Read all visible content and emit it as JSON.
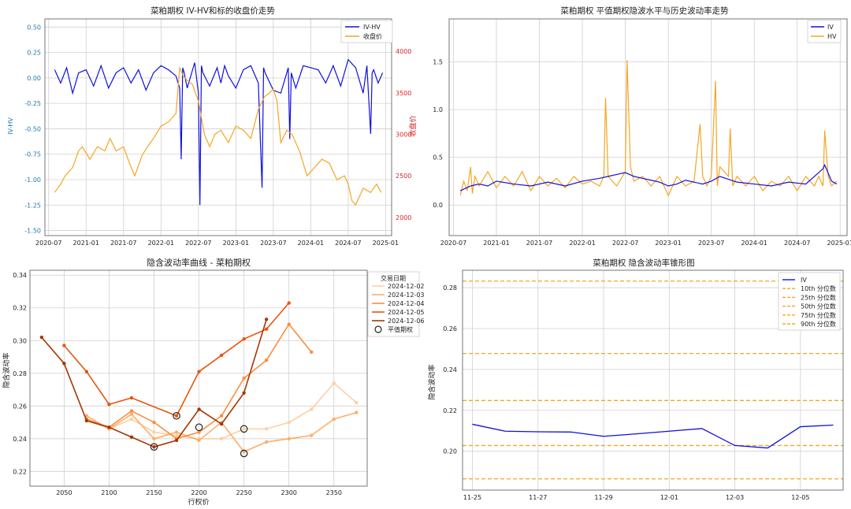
{
  "chart_data": [
    {
      "id": "ivhv",
      "type": "line",
      "title": "菜粕期权 IV-HV和标的收盘价走势",
      "ylabel": "IV-HV",
      "y2label": "收盘价",
      "ylim": [
        -1.55,
        0.58
      ],
      "y2lim": [
        1780,
        4390
      ],
      "xlim": [
        2020.45,
        2025.08
      ],
      "xticks": [
        "2020-07",
        "2021-01",
        "2021-07",
        "2022-01",
        "2022-07",
        "2023-01",
        "2023-07",
        "2024-01",
        "2024-07",
        "2025-01"
      ],
      "yticks": [
        "0.50",
        "0.25",
        "0.00",
        "-0.25",
        "-0.50",
        "-0.75",
        "-1.00",
        "-1.25",
        "-1.50"
      ],
      "y2ticks": [
        "2000",
        "2500",
        "3000",
        "3500",
        "4000"
      ],
      "legend": [
        "IV-HV",
        "收盘价"
      ],
      "series": [
        {
          "name": "IV-HV",
          "x": [
            2020.58,
            2020.66,
            2020.74,
            2020.82,
            2020.9,
            2021.0,
            2021.1,
            2021.2,
            2021.3,
            2021.4,
            2021.5,
            2021.6,
            2021.7,
            2021.8,
            2021.9,
            2022.0,
            2022.1,
            2022.2,
            2022.25,
            2022.27,
            2022.29,
            2022.31,
            2022.35,
            2022.45,
            2022.5,
            2022.52,
            2022.54,
            2022.56,
            2022.65,
            2022.75,
            2022.8,
            2022.85,
            2022.9,
            2023.0,
            2023.1,
            2023.2,
            2023.3,
            2023.35,
            2023.37,
            2023.39,
            2023.5,
            2023.6,
            2023.7,
            2023.72,
            2023.74,
            2023.8,
            2023.9,
            2024.0,
            2024.1,
            2024.2,
            2024.3,
            2024.4,
            2024.5,
            2024.6,
            2024.7,
            2024.75,
            2024.8,
            2024.82,
            2024.84,
            2024.9,
            2024.96
          ],
          "y": [
            0.08,
            -0.05,
            0.1,
            -0.15,
            0.05,
            0.08,
            -0.08,
            0.12,
            -0.1,
            0.05,
            0.1,
            -0.05,
            0.08,
            -0.12,
            0.05,
            0.12,
            0.08,
            0.02,
            -0.1,
            -0.8,
            0.1,
            0.05,
            -0.1,
            0.15,
            -0.15,
            -1.25,
            0.12,
            0.05,
            -0.08,
            0.1,
            -0.05,
            0.12,
            0.02,
            -0.1,
            0.08,
            0.12,
            -0.05,
            -1.08,
            0.1,
            0.05,
            -0.12,
            -0.15,
            0.1,
            -0.6,
            0.05,
            -0.1,
            0.12,
            0.1,
            0.08,
            -0.05,
            0.12,
            -0.08,
            0.18,
            0.1,
            -0.15,
            0.12,
            -0.55,
            0.05,
            0.08,
            -0.05,
            0.05
          ]
        },
        {
          "name": "收盘价",
          "x": [
            2020.58,
            2020.66,
            2020.72,
            2020.82,
            2020.9,
            2020.95,
            2021.05,
            2021.15,
            2021.25,
            2021.32,
            2021.4,
            2021.5,
            2021.58,
            2021.65,
            2021.75,
            2021.82,
            2021.9,
            2022.0,
            2022.1,
            2022.2,
            2022.25,
            2022.3,
            2022.35,
            2022.42,
            2022.5,
            2022.58,
            2022.65,
            2022.72,
            2022.8,
            2022.9,
            2023.0,
            2023.1,
            2023.2,
            2023.3,
            2023.38,
            2023.45,
            2023.5,
            2023.55,
            2023.6,
            2023.68,
            2023.75,
            2023.85,
            2023.95,
            2024.05,
            2024.15,
            2024.25,
            2024.35,
            2024.45,
            2024.5,
            2024.55,
            2024.6,
            2024.7,
            2024.8,
            2024.88,
            2024.94
          ],
          "y": [
            2300,
            2400,
            2500,
            2600,
            2800,
            2850,
            2700,
            2850,
            2800,
            2950,
            2800,
            2850,
            2650,
            2500,
            2750,
            2850,
            2950,
            3100,
            3150,
            3250,
            3800,
            3700,
            3650,
            3600,
            3400,
            3000,
            2850,
            3000,
            3050,
            2900,
            3100,
            3050,
            2950,
            3300,
            3450,
            3500,
            3550,
            3400,
            2900,
            3050,
            3000,
            2800,
            2500,
            2600,
            2700,
            2650,
            2450,
            2500,
            2400,
            2200,
            2150,
            2350,
            2300,
            2400,
            2300
          ]
        }
      ]
    },
    {
      "id": "ivhvlines",
      "type": "line",
      "title": "菜粕期权 平值期权隐波水平与历史波动率走势",
      "ylim": [
        -0.32,
        1.95
      ],
      "xlim": [
        2020.45,
        2025.08
      ],
      "xticks": [
        "2020-07",
        "2021-01",
        "2021-07",
        "2022-01",
        "2022-07",
        "2023-01",
        "2023-07",
        "2024-01",
        "2024-07",
        "2025-01"
      ],
      "yticks": [
        "1.5",
        "1.0",
        "0.5",
        "0.0"
      ],
      "legend": [
        "IV",
        "HV"
      ],
      "series": [
        {
          "name": "IV",
          "x": [
            2020.58,
            2020.7,
            2020.8,
            2020.9,
            2021.0,
            2021.2,
            2021.4,
            2021.6,
            2021.8,
            2022.0,
            2022.2,
            2022.3,
            2022.4,
            2022.5,
            2022.6,
            2022.7,
            2022.8,
            2022.9,
            2023.0,
            2023.1,
            2023.2,
            2023.4,
            2023.5,
            2023.6,
            2023.8,
            2024.0,
            2024.2,
            2024.4,
            2024.6,
            2024.7,
            2024.8,
            2024.82,
            2024.9,
            2024.96
          ],
          "y": [
            0.15,
            0.2,
            0.22,
            0.2,
            0.25,
            0.22,
            0.2,
            0.24,
            0.2,
            0.25,
            0.28,
            0.3,
            0.32,
            0.34,
            0.3,
            0.28,
            0.26,
            0.24,
            0.2,
            0.22,
            0.26,
            0.22,
            0.25,
            0.3,
            0.24,
            0.22,
            0.2,
            0.24,
            0.22,
            0.3,
            0.38,
            0.42,
            0.25,
            0.22
          ]
        },
        {
          "name": "HV",
          "x": [
            2020.58,
            2020.62,
            2020.66,
            2020.7,
            2020.72,
            2020.75,
            2020.8,
            2020.9,
            2021.0,
            2021.1,
            2021.2,
            2021.3,
            2021.4,
            2021.5,
            2021.6,
            2021.7,
            2021.8,
            2021.9,
            2022.0,
            2022.1,
            2022.2,
            2022.25,
            2022.27,
            2022.3,
            2022.4,
            2022.5,
            2022.52,
            2022.56,
            2022.6,
            2022.7,
            2022.8,
            2022.9,
            2023.0,
            2023.1,
            2023.2,
            2023.3,
            2023.37,
            2023.4,
            2023.45,
            2023.5,
            2023.55,
            2023.57,
            2023.6,
            2023.7,
            2023.72,
            2023.75,
            2023.8,
            2023.9,
            2024.0,
            2024.1,
            2024.2,
            2024.3,
            2024.4,
            2024.5,
            2024.6,
            2024.7,
            2024.75,
            2024.8,
            2024.82,
            2024.86,
            2024.9,
            2024.96
          ],
          "y": [
            0.1,
            0.25,
            0.15,
            0.4,
            0.12,
            0.3,
            0.2,
            0.35,
            0.18,
            0.3,
            0.2,
            0.35,
            0.15,
            0.3,
            0.2,
            0.28,
            0.18,
            0.3,
            0.22,
            0.25,
            0.2,
            0.3,
            1.12,
            0.3,
            0.2,
            0.35,
            1.52,
            0.4,
            0.25,
            0.3,
            0.2,
            0.3,
            0.1,
            0.3,
            0.2,
            0.25,
            0.85,
            0.3,
            0.2,
            0.3,
            1.3,
            0.2,
            0.4,
            0.3,
            0.8,
            0.2,
            0.3,
            0.2,
            0.3,
            0.15,
            0.25,
            0.2,
            0.3,
            0.15,
            0.3,
            0.2,
            0.3,
            0.2,
            0.78,
            0.3,
            0.2,
            0.25
          ]
        }
      ]
    },
    {
      "id": "smile",
      "type": "line",
      "title": "隐含波动率曲线 - 菜粕期权",
      "xlabel": "行权价",
      "ylabel": "隐含波动率",
      "xlim": [
        2012,
        2387
      ],
      "ylim": [
        0.211,
        0.343
      ],
      "xticks": [
        2050,
        2100,
        2150,
        2200,
        2250,
        2300,
        2350
      ],
      "yticks": [
        "0.34",
        "0.32",
        "0.30",
        "0.28",
        "0.26",
        "0.24",
        "0.22"
      ],
      "legend_title": "交易日期",
      "legend": [
        "2024-12-02",
        "2024-12-03",
        "2024-12-04",
        "2024-12-05",
        "2024-12-06",
        "平值期权"
      ],
      "series": [
        {
          "name": "2024-12-02",
          "color": "#fdd0a2",
          "x": [
            2075,
            2100,
            2125,
            2150,
            2175,
            2200,
            2225,
            2250,
            2275,
            2300,
            2325,
            2350,
            2375
          ],
          "y": [
            0.252,
            0.246,
            0.252,
            0.244,
            0.242,
            0.24,
            0.24,
            0.246,
            0.246,
            0.25,
            0.258,
            0.274,
            0.262
          ]
        },
        {
          "name": "2024-12-03",
          "color": "#fdae6b",
          "x": [
            2075,
            2100,
            2125,
            2150,
            2175,
            2200,
            2225,
            2250,
            2275,
            2300,
            2325,
            2350,
            2375
          ],
          "y": [
            0.254,
            0.246,
            0.255,
            0.24,
            0.244,
            0.239,
            0.25,
            0.232,
            0.238,
            0.24,
            0.242,
            0.252,
            0.256
          ]
        },
        {
          "name": "2024-12-04",
          "color": "#fd8d3c",
          "x": [
            2075,
            2100,
            2125,
            2150,
            2175,
            2200,
            2225,
            2250,
            2275,
            2300,
            2325
          ],
          "y": [
            0.252,
            0.247,
            0.257,
            0.25,
            0.24,
            0.244,
            0.254,
            0.277,
            0.288,
            0.31,
            0.293
          ]
        },
        {
          "name": "2024-12-05",
          "color": "#e6550d",
          "x": [
            2050,
            2075,
            2100,
            2125,
            2175,
            2200,
            2225,
            2250,
            2275,
            2300
          ],
          "y": [
            0.297,
            0.281,
            0.261,
            0.265,
            0.254,
            0.281,
            0.291,
            0.301,
            0.307,
            0.323
          ]
        },
        {
          "name": "2024-12-06",
          "color": "#a63603",
          "x": [
            2025,
            2050,
            2075,
            2100,
            2125,
            2150,
            2175,
            2200,
            2225,
            2250,
            2275
          ],
          "y": [
            0.302,
            0.286,
            0.251,
            0.247,
            0.241,
            0.235,
            0.239,
            0.258,
            0.249,
            0.268,
            0.313
          ]
        }
      ],
      "atm": [
        {
          "x": 2150,
          "y": 0.235
        },
        {
          "x": 2175,
          "y": 0.254
        },
        {
          "x": 2200,
          "y": 0.247
        },
        {
          "x": 2250,
          "y": 0.246
        },
        {
          "x": 2250,
          "y": 0.231
        }
      ]
    },
    {
      "id": "cone",
      "type": "line",
      "title": "菜粕期权 隐含波动率锥形图",
      "ylabel": "隐含波动率",
      "xlim": [
        -0.3,
        11.3
      ],
      "ylim": [
        0.181,
        0.2885
      ],
      "xticks": [
        "11-25",
        "11-27",
        "11-29",
        "12-01",
        "12-03",
        "12-05"
      ],
      "yticks": [
        "0.28",
        "0.26",
        "0.24",
        "0.22",
        "0.20"
      ],
      "legend": [
        "IV",
        "10th 分位数",
        "25th 分位数",
        "50th 分位数",
        "75th 分位数",
        "90th 分位数"
      ],
      "series": [
        {
          "name": "IV",
          "x": [
            0,
            1,
            2,
            3,
            4,
            5,
            6,
            7,
            8,
            9,
            10,
            11
          ],
          "y": [
            0.2132,
            0.2098,
            0.2095,
            0.2094,
            0.2073,
            0.2085,
            0.2098,
            0.2111,
            0.2028,
            0.2016,
            0.212,
            0.2128
          ]
        }
      ],
      "percentiles": [
        0.1865,
        0.2028,
        0.2248,
        0.2478,
        0.2832
      ]
    }
  ]
}
